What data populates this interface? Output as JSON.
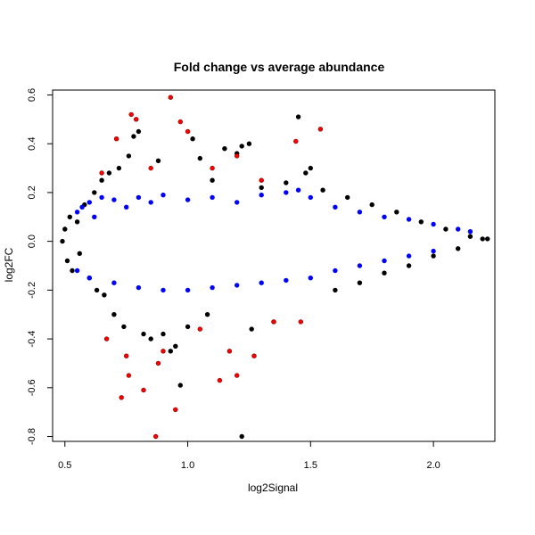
{
  "chart_data": {
    "type": "scatter",
    "title": "Fold change vs average abundance",
    "xlabel": "log2Signal",
    "ylabel": "log2FC",
    "xlim": [
      0.45,
      2.25
    ],
    "ylim": [
      -0.82,
      0.62
    ],
    "x_ticks": [
      0.5,
      1.0,
      1.5,
      2.0
    ],
    "x_tick_labels": [
      "0.5",
      "1.0",
      "1.5",
      "2.0"
    ],
    "y_ticks": [
      -0.8,
      -0.6,
      -0.4,
      -0.2,
      0.0,
      0.2,
      0.4,
      0.6
    ],
    "y_tick_labels": [
      "-0.8",
      "-0.6",
      "-0.4",
      "-0.2",
      "0.0",
      "0.2",
      "0.4",
      "0.6"
    ],
    "grid": false,
    "colors": {
      "black": "#000000",
      "blue": "#0000ff",
      "red": "#ff0000",
      "red_edge": "#800000"
    },
    "series": [
      {
        "color": "black",
        "points": [
          [
            0.49,
            0.0
          ],
          [
            0.5,
            0.05
          ],
          [
            0.51,
            -0.08
          ],
          [
            0.52,
            0.1
          ],
          [
            0.53,
            -0.12
          ],
          [
            0.55,
            0.08
          ],
          [
            0.56,
            -0.05
          ],
          [
            0.58,
            0.15
          ],
          [
            0.6,
            -0.15
          ],
          [
            0.62,
            0.2
          ],
          [
            0.63,
            -0.2
          ],
          [
            0.65,
            0.25
          ],
          [
            0.66,
            -0.22
          ],
          [
            0.68,
            0.28
          ],
          [
            0.7,
            -0.3
          ],
          [
            0.72,
            0.3
          ],
          [
            0.74,
            -0.35
          ],
          [
            0.76,
            0.35
          ],
          [
            0.78,
            0.43
          ],
          [
            0.8,
            0.45
          ],
          [
            0.82,
            -0.38
          ],
          [
            0.85,
            -0.4
          ],
          [
            0.88,
            0.33
          ],
          [
            0.9,
            -0.38
          ],
          [
            0.93,
            -0.45
          ],
          [
            0.95,
            -0.43
          ],
          [
            0.97,
            -0.59
          ],
          [
            1.0,
            -0.35
          ],
          [
            1.02,
            0.42
          ],
          [
            1.05,
            0.34
          ],
          [
            1.08,
            -0.3
          ],
          [
            1.1,
            0.25
          ],
          [
            1.15,
            0.38
          ],
          [
            1.2,
            0.36
          ],
          [
            1.22,
            0.39
          ],
          [
            1.25,
            0.4
          ],
          [
            1.26,
            -0.36
          ],
          [
            1.22,
            -0.8
          ],
          [
            1.3,
            0.22
          ],
          [
            1.35,
            -0.33
          ],
          [
            1.4,
            0.24
          ],
          [
            1.45,
            0.51
          ],
          [
            1.48,
            0.28
          ],
          [
            1.5,
            0.3
          ],
          [
            1.55,
            0.21
          ],
          [
            1.6,
            -0.2
          ],
          [
            1.65,
            0.18
          ],
          [
            1.7,
            -0.17
          ],
          [
            1.75,
            0.15
          ],
          [
            1.8,
            -0.13
          ],
          [
            1.85,
            0.12
          ],
          [
            1.9,
            -0.1
          ],
          [
            1.95,
            0.08
          ],
          [
            2.0,
            -0.06
          ],
          [
            2.05,
            0.05
          ],
          [
            2.1,
            -0.03
          ],
          [
            2.15,
            0.02
          ],
          [
            2.2,
            0.01
          ],
          [
            2.22,
            0.01
          ]
        ]
      },
      {
        "color": "blue",
        "points": [
          [
            0.55,
            0.12
          ],
          [
            0.57,
            0.14
          ],
          [
            0.6,
            0.16
          ],
          [
            0.62,
            0.1
          ],
          [
            0.65,
            0.18
          ],
          [
            0.7,
            0.17
          ],
          [
            0.75,
            0.14
          ],
          [
            0.8,
            0.18
          ],
          [
            0.85,
            0.16
          ],
          [
            0.9,
            0.19
          ],
          [
            1.0,
            0.17
          ],
          [
            1.1,
            0.18
          ],
          [
            1.2,
            0.16
          ],
          [
            1.3,
            0.19
          ],
          [
            1.4,
            0.2
          ],
          [
            1.45,
            0.21
          ],
          [
            1.5,
            0.18
          ],
          [
            1.6,
            0.14
          ],
          [
            1.7,
            0.12
          ],
          [
            1.8,
            0.1
          ],
          [
            1.9,
            0.09
          ],
          [
            2.0,
            0.07
          ],
          [
            2.1,
            0.05
          ],
          [
            2.15,
            0.04
          ],
          [
            0.55,
            -0.12
          ],
          [
            0.6,
            -0.15
          ],
          [
            0.7,
            -0.17
          ],
          [
            0.8,
            -0.19
          ],
          [
            0.9,
            -0.2
          ],
          [
            1.0,
            -0.2
          ],
          [
            1.1,
            -0.19
          ],
          [
            1.2,
            -0.18
          ],
          [
            1.3,
            -0.17
          ],
          [
            1.4,
            -0.16
          ],
          [
            1.5,
            -0.15
          ],
          [
            1.6,
            -0.12
          ],
          [
            1.7,
            -0.1
          ],
          [
            1.8,
            -0.08
          ],
          [
            1.9,
            -0.06
          ],
          [
            2.0,
            -0.04
          ]
        ]
      },
      {
        "color": "red",
        "points": [
          [
            0.93,
            0.59
          ],
          [
            0.77,
            0.52
          ],
          [
            0.79,
            0.5
          ],
          [
            0.97,
            0.49
          ],
          [
            0.71,
            0.42
          ],
          [
            1.0,
            0.45
          ],
          [
            1.2,
            0.35
          ],
          [
            1.44,
            0.41
          ],
          [
            1.54,
            0.46
          ],
          [
            0.65,
            0.28
          ],
          [
            0.85,
            0.3
          ],
          [
            1.1,
            0.3
          ],
          [
            1.3,
            0.25
          ],
          [
            0.87,
            -0.8
          ],
          [
            0.73,
            -0.64
          ],
          [
            0.82,
            -0.61
          ],
          [
            0.95,
            -0.69
          ],
          [
            0.76,
            -0.55
          ],
          [
            1.2,
            -0.55
          ],
          [
            1.13,
            -0.57
          ],
          [
            1.27,
            -0.47
          ],
          [
            0.67,
            -0.4
          ],
          [
            1.35,
            -0.33
          ],
          [
            1.46,
            -0.33
          ],
          [
            1.05,
            -0.36
          ],
          [
            0.9,
            -0.45
          ],
          [
            0.75,
            -0.47
          ],
          [
            1.17,
            -0.45
          ],
          [
            0.88,
            -0.5
          ]
        ]
      }
    ]
  }
}
